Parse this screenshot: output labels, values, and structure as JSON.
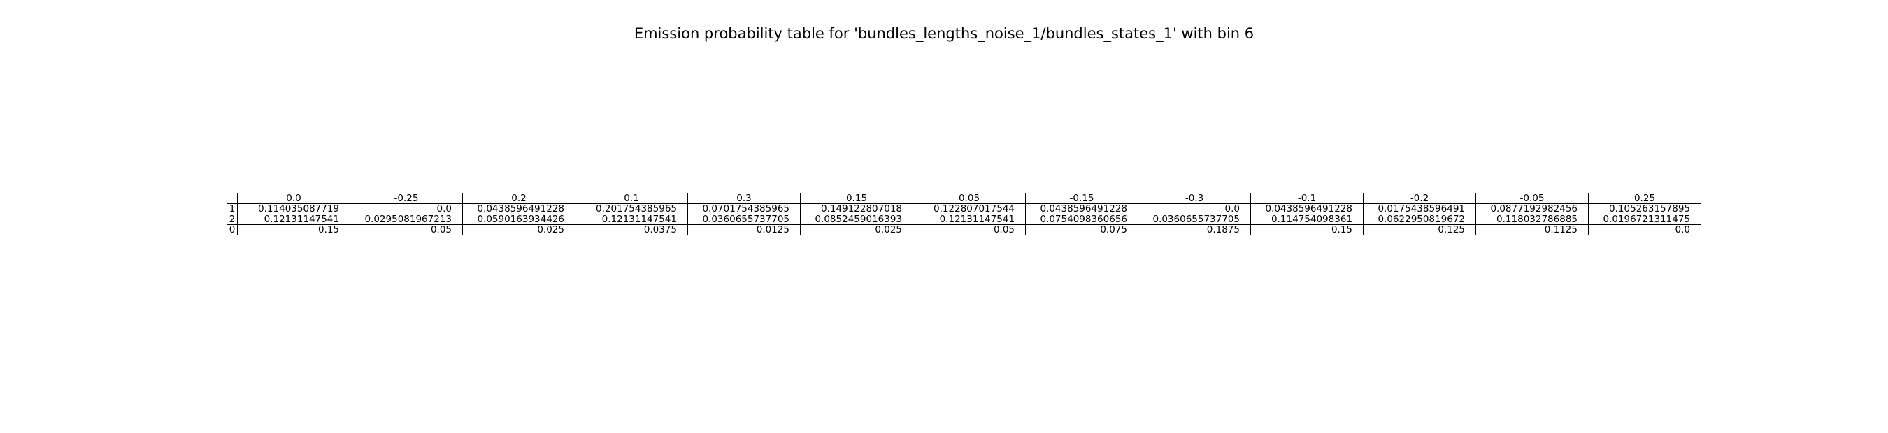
{
  "chart_data": {
    "type": "table",
    "title": "Emission probability table for 'bundles_lengths_noise_1/bundles_states_1' with bin 6",
    "columns": [
      "0.0",
      "-0.25",
      "0.2",
      "0.1",
      "0.3",
      "0.15",
      "0.05",
      "-0.15",
      "-0.3",
      "-0.1",
      "-0.2",
      "-0.05",
      "0.25"
    ],
    "rows": [
      {
        "label": "1",
        "values": [
          "0.114035087719",
          "0.0",
          "0.0438596491228",
          "0.201754385965",
          "0.0701754385965",
          "0.149122807018",
          "0.122807017544",
          "0.0438596491228",
          "0.0",
          "0.0438596491228",
          "0.0175438596491",
          "0.0877192982456",
          "0.105263157895"
        ]
      },
      {
        "label": "2",
        "values": [
          "0.12131147541",
          "0.0295081967213",
          "0.0590163934426",
          "0.12131147541",
          "0.0360655737705",
          "0.0852459016393",
          "0.12131147541",
          "0.0754098360656",
          "0.0360655737705",
          "0.114754098361",
          "0.0622950819672",
          "0.118032786885",
          "0.0196721311475"
        ]
      },
      {
        "label": "0",
        "values": [
          "0.15",
          "0.05",
          "0.025",
          "0.0375",
          "0.0125",
          "0.025",
          "0.05",
          "0.075",
          "0.1875",
          "0.15",
          "0.125",
          "0.1125",
          "0.0"
        ]
      }
    ]
  }
}
